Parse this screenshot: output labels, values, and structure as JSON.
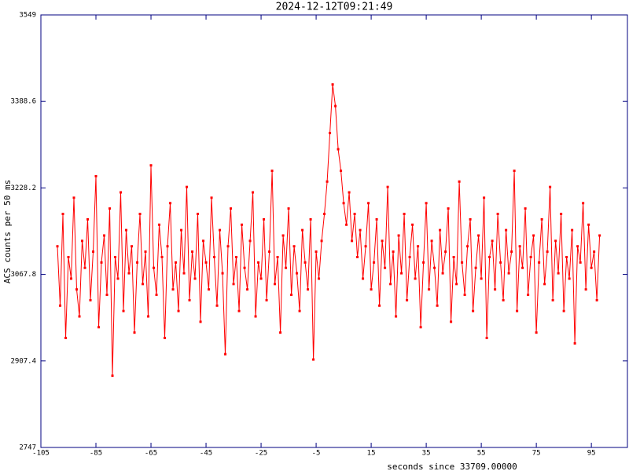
{
  "chart_data": {
    "type": "line",
    "title": "2024-12-12T09:21:49",
    "x_label": "seconds since 33709.00000",
    "y_label": "ACS counts per 50 ms",
    "xlim": [
      -105,
      108.1
    ],
    "xticks": [
      -105,
      -85,
      -65,
      -45,
      -25,
      -5,
      15,
      35,
      55,
      75,
      95
    ],
    "ylim": [
      2747,
      3549
    ],
    "yticks": [
      2747,
      2907.4,
      3067.8,
      3228.2,
      3388.6,
      3549
    ],
    "frame_color": "#000080",
    "x": [
      -99,
      -98,
      -97,
      -96,
      -95,
      -94,
      -93,
      -92,
      -91,
      -90,
      -89,
      -88,
      -87,
      -86,
      -85,
      -84,
      -83,
      -82,
      -81,
      -80,
      -79,
      -78,
      -77,
      -76,
      -75,
      -74,
      -73,
      -72,
      -71,
      -70,
      -69,
      -68,
      -67,
      -66,
      -65,
      -64,
      -63,
      -62,
      -61,
      -60,
      -59,
      -58,
      -57,
      -56,
      -55,
      -54,
      -53,
      -52,
      -51,
      -50,
      -49,
      -48,
      -47,
      -46,
      -45,
      -44,
      -43,
      -42,
      -41,
      -40,
      -39,
      -38,
      -37,
      -36,
      -35,
      -34,
      -33,
      -32,
      -31,
      -30,
      -29,
      -28,
      -27,
      -26,
      -25,
      -24,
      -23,
      -22,
      -21,
      -20,
      -19,
      -18,
      -17,
      -16,
      -15,
      -14,
      -13,
      -12,
      -11,
      -10,
      -9,
      -8,
      -7,
      -6,
      -5,
      -4,
      -3,
      -2,
      -1,
      0,
      1,
      2,
      3,
      4,
      5,
      6,
      7,
      8,
      9,
      10,
      11,
      12,
      13,
      14,
      15,
      16,
      17,
      18,
      19,
      20,
      21,
      22,
      23,
      24,
      25,
      26,
      27,
      28,
      29,
      30,
      31,
      32,
      33,
      34,
      35,
      36,
      37,
      38,
      39,
      40,
      41,
      42,
      43,
      44,
      45,
      46,
      47,
      48,
      49,
      50,
      51,
      52,
      53,
      54,
      55,
      56,
      57,
      58,
      59,
      60,
      61,
      62,
      63,
      64,
      65,
      66,
      67,
      68,
      69,
      70,
      71,
      72,
      73,
      74,
      75,
      76,
      77,
      78,
      79,
      80,
      81,
      82,
      83,
      84,
      85,
      86,
      87,
      88,
      89,
      90,
      91,
      92,
      93,
      94,
      95,
      96,
      97,
      98
    ],
    "series": [
      {
        "color": "#ff0000",
        "values": [
          3120,
          3010,
          3180,
          2950,
          3100,
          3060,
          3210,
          3040,
          2990,
          3130,
          3080,
          3170,
          3020,
          3110,
          3250,
          2970,
          3090,
          3140,
          3030,
          3190,
          2880,
          3100,
          3060,
          3220,
          3000,
          3150,
          3070,
          3120,
          2960,
          3090,
          3180,
          3050,
          3110,
          2990,
          3270,
          3080,
          3030,
          3160,
          3100,
          2950,
          3120,
          3200,
          3040,
          3090,
          3000,
          3150,
          3070,
          3230,
          3020,
          3110,
          3060,
          3180,
          2980,
          3130,
          3090,
          3040,
          3210,
          3100,
          3010,
          3150,
          3070,
          2920,
          3120,
          3190,
          3050,
          3100,
          3000,
          3160,
          3080,
          3040,
          3130,
          3220,
          2990,
          3090,
          3060,
          3170,
          3020,
          3110,
          3260,
          3050,
          3100,
          2960,
          3140,
          3080,
          3190,
          3030,
          3120,
          3070,
          3000,
          3150,
          3090,
          3040,
          3170,
          2910,
          3110,
          3060,
          3130,
          3180,
          3240,
          3330,
          3420,
          3380,
          3300,
          3260,
          3200,
          3160,
          3220,
          3130,
          3180,
          3100,
          3150,
          3060,
          3120,
          3200,
          3040,
          3090,
          3170,
          3010,
          3130,
          3080,
          3230,
          3050,
          3110,
          2990,
          3140,
          3070,
          3180,
          3020,
          3100,
          3160,
          3060,
          3120,
          2970,
          3090,
          3200,
          3040,
          3130,
          3080,
          3010,
          3150,
          3070,
          3110,
          3190,
          2980,
          3100,
          3050,
          3240,
          3090,
          3030,
          3120,
          3170,
          3000,
          3080,
          3140,
          3060,
          3210,
          2950,
          3100,
          3130,
          3040,
          3180,
          3090,
          3020,
          3150,
          3070,
          3110,
          3260,
          3000,
          3120,
          3080,
          3190,
          3030,
          3100,
          3140,
          2960,
          3090,
          3170,
          3050,
          3110,
          3230,
          3020,
          3130,
          3070,
          3180,
          3000,
          3100,
          3060,
          3150,
          2940,
          3120,
          3090,
          3200,
          3040,
          3160,
          3080,
          3110,
          3020,
          3140
        ]
      }
    ]
  }
}
